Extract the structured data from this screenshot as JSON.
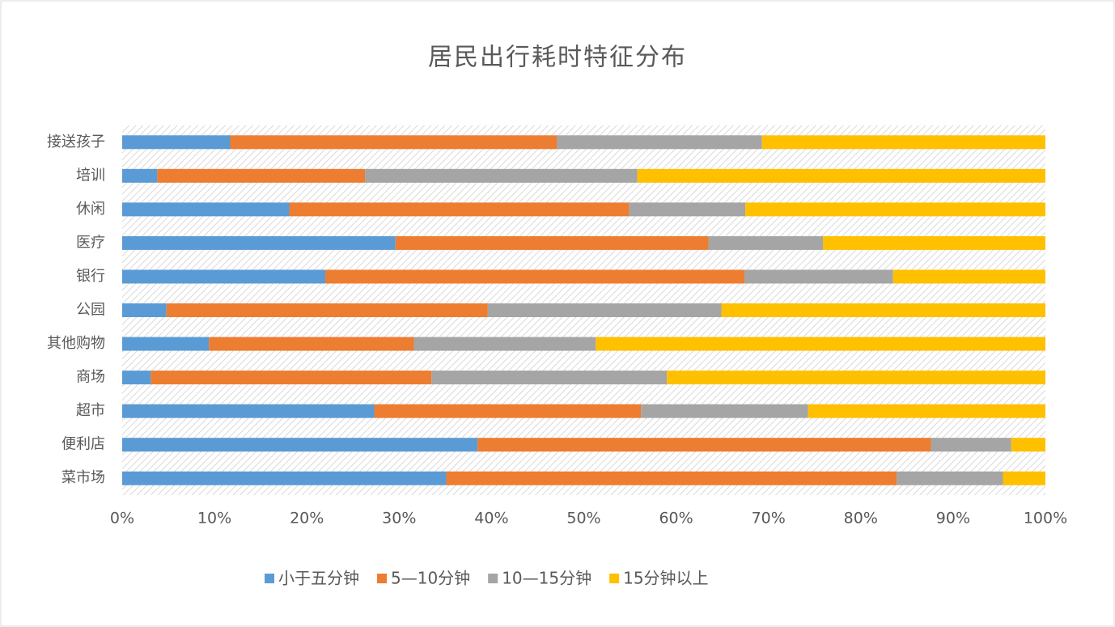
{
  "chart_data": {
    "type": "bar",
    "orientation": "horizontal",
    "stacked": true,
    "title": "居民出行耗时特征分布",
    "categories": [
      "接送孩子",
      "培训",
      "休闲",
      "医疗",
      "银行",
      "公园",
      "其他购物",
      "商场",
      "超市",
      "便利店",
      "菜市场"
    ],
    "series": [
      {
        "name": "小于五分钟",
        "color": "#5b9bd5",
        "values": [
          11.7,
          3.8,
          18.1,
          29.6,
          22.0,
          4.8,
          9.4,
          3.1,
          27.3,
          38.5,
          35.1
        ]
      },
      {
        "name": "5—10分钟",
        "color": "#ed7d31",
        "values": [
          35.4,
          22.5,
          36.8,
          33.9,
          45.4,
          34.8,
          22.2,
          30.4,
          28.9,
          49.1,
          48.8
        ]
      },
      {
        "name": "10—15分钟",
        "color": "#a5a5a5",
        "values": [
          22.2,
          29.5,
          12.6,
          12.4,
          16.1,
          25.3,
          19.7,
          25.5,
          18.1,
          8.7,
          11.5
        ]
      },
      {
        "name": "15分钟以上",
        "color": "#ffc000",
        "values": [
          30.7,
          44.2,
          32.5,
          24.1,
          16.5,
          35.1,
          48.7,
          41.0,
          25.7,
          3.7,
          4.6
        ]
      }
    ],
    "xlim": [
      0,
      100
    ],
    "xticks": [
      {
        "value": 0,
        "label": "0%"
      },
      {
        "value": 10,
        "label": "10%"
      },
      {
        "value": 20,
        "label": "20%"
      },
      {
        "value": 30,
        "label": "30%"
      },
      {
        "value": 40,
        "label": "40%"
      },
      {
        "value": 50,
        "label": "50%"
      },
      {
        "value": 60,
        "label": "60%"
      },
      {
        "value": 70,
        "label": "70%"
      },
      {
        "value": 80,
        "label": "80%"
      },
      {
        "value": 90,
        "label": "90%"
      },
      {
        "value": 100,
        "label": "100%"
      }
    ],
    "legend": "bottom"
  }
}
